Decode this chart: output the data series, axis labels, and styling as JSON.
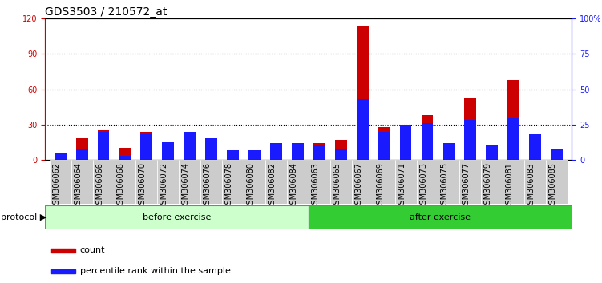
{
  "title": "GDS3503 / 210572_at",
  "samples": [
    "GSM306062",
    "GSM306064",
    "GSM306066",
    "GSM306068",
    "GSM306070",
    "GSM306072",
    "GSM306074",
    "GSM306076",
    "GSM306078",
    "GSM306080",
    "GSM306082",
    "GSM306084",
    "GSM306063",
    "GSM306065",
    "GSM306067",
    "GSM306069",
    "GSM306071",
    "GSM306073",
    "GSM306075",
    "GSM306077",
    "GSM306079",
    "GSM306081",
    "GSM306083",
    "GSM306085"
  ],
  "count_values": [
    3,
    18,
    25,
    10,
    24,
    9,
    23,
    17,
    2,
    3,
    10,
    10,
    14,
    17,
    113,
    28,
    29,
    38,
    10,
    52,
    8,
    68,
    18,
    5
  ],
  "percentile_values": [
    5,
    8,
    20,
    3,
    18,
    13,
    20,
    16,
    7,
    7,
    12,
    12,
    10,
    8,
    43,
    20,
    25,
    26,
    12,
    28,
    10,
    30,
    18,
    8
  ],
  "before_exercise_count": 12,
  "after_exercise_count": 12,
  "before_label": "before exercise",
  "after_label": "after exercise",
  "protocol_label": "protocol",
  "count_label": "count",
  "percentile_label": "percentile rank within the sample",
  "left_ylim": [
    0,
    120
  ],
  "right_ylim": [
    0,
    100
  ],
  "left_yticks": [
    0,
    30,
    60,
    90,
    120
  ],
  "right_yticks": [
    0,
    25,
    50,
    75,
    100
  ],
  "right_yticklabels": [
    "0",
    "25",
    "50",
    "75",
    "100%"
  ],
  "count_color": "#cc0000",
  "percentile_color": "#1a1aff",
  "before_bg": "#ccffcc",
  "after_bg": "#33cc33",
  "tick_bg": "#cccccc",
  "title_fontsize": 10,
  "tick_fontsize": 7,
  "label_fontsize": 8,
  "grid_color": "#000000",
  "axis_color_left": "#cc0000",
  "axis_color_right": "#1a1aff"
}
